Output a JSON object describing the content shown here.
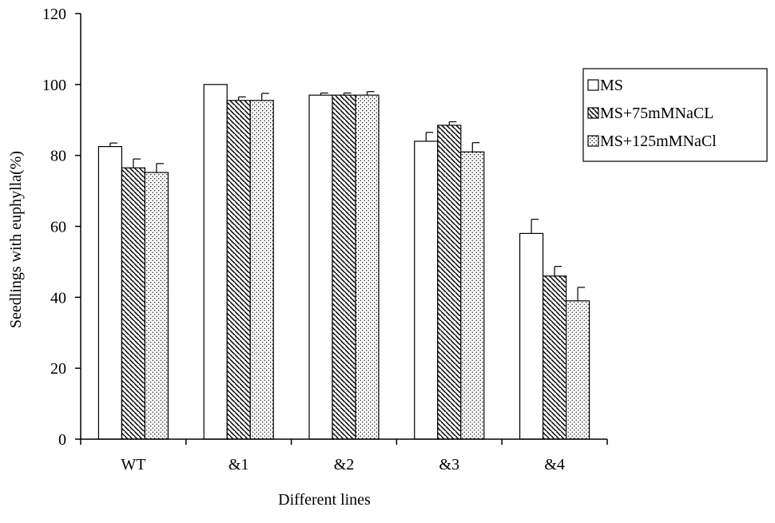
{
  "chart_data": {
    "type": "bar",
    "title": "",
    "xlabel": "Different lines",
    "ylabel": "Seedlings with euphylla(%)",
    "ylim": [
      0,
      120
    ],
    "yticks": [
      0,
      20,
      40,
      60,
      80,
      100,
      120
    ],
    "grid": false,
    "legend_position": "right",
    "categories": [
      "WT",
      "&1",
      "&2",
      "&3",
      "&4"
    ],
    "series": [
      {
        "name": "MS",
        "pattern": "blank",
        "values": [
          82.5,
          100,
          97,
          84,
          58
        ],
        "errors": [
          1.0,
          0,
          0.6,
          2.5,
          4.0
        ]
      },
      {
        "name": "MS+75mMNaCL",
        "pattern": "diagonal-hatch",
        "values": [
          76.5,
          95.5,
          97,
          88.5,
          46
        ],
        "errors": [
          2.5,
          1.0,
          0.6,
          1.0,
          2.7
        ]
      },
      {
        "name": "MS+125mMNaCl",
        "pattern": "dots",
        "values": [
          75.2,
          95.5,
          97,
          81,
          39
        ],
        "errors": [
          2.5,
          2.0,
          1.0,
          2.6,
          3.8
        ]
      }
    ],
    "colors": {
      "bar_fill": "#ffffff",
      "stroke": "#000000",
      "background": "#ffffff"
    }
  }
}
